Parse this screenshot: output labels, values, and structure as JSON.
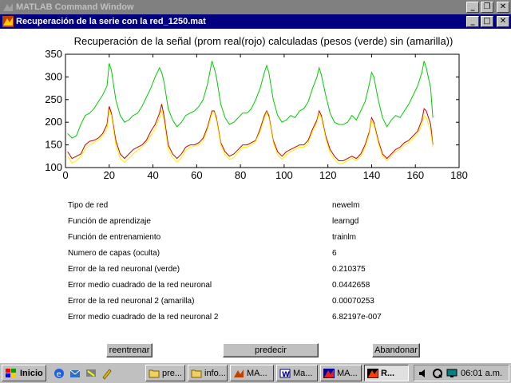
{
  "bg_window": {
    "title": "MATLAB Command Window"
  },
  "figure_window": {
    "title": "Recuperación de la serie con la red_1250.mat"
  },
  "chart_data": {
    "type": "line",
    "title": "Recuperación de la señal (prom real(rojo) calculadas (pesos (verde) sin (amarilla))",
    "xlim": [
      0,
      180
    ],
    "ylim": [
      100,
      350
    ],
    "xticks": [
      0,
      20,
      40,
      60,
      80,
      100,
      120,
      140,
      160,
      180
    ],
    "yticks": [
      100,
      150,
      200,
      250,
      300,
      350
    ],
    "grid": false,
    "series": [
      {
        "color": "#00cc00",
        "x": [
          1,
          3,
          5,
          7,
          9,
          11,
          13,
          15,
          17,
          19,
          20,
          21,
          23,
          25,
          27,
          29,
          31,
          33,
          35,
          37,
          39,
          41,
          43,
          44,
          45,
          47,
          49,
          51,
          53,
          55,
          57,
          59,
          61,
          63,
          65,
          67,
          68,
          69,
          71,
          73,
          75,
          77,
          79,
          81,
          83,
          85,
          87,
          89,
          91,
          92,
          93,
          95,
          97,
          99,
          101,
          103,
          105,
          107,
          109,
          111,
          113,
          115,
          116,
          117,
          119,
          121,
          123,
          125,
          127,
          129,
          131,
          133,
          135,
          137,
          139,
          140,
          141,
          143,
          145,
          147,
          149,
          151,
          153,
          155,
          157,
          159,
          161,
          163,
          164,
          165,
          167,
          168
        ],
        "y": [
          175,
          165,
          170,
          195,
          215,
          220,
          230,
          245,
          260,
          280,
          330,
          315,
          250,
          215,
          200,
          205,
          215,
          220,
          235,
          255,
          275,
          300,
          320,
          310,
          290,
          230,
          205,
          190,
          200,
          215,
          220,
          225,
          235,
          250,
          285,
          335,
          320,
          300,
          240,
          210,
          195,
          200,
          210,
          220,
          220,
          230,
          250,
          275,
          310,
          325,
          310,
          250,
          215,
          200,
          205,
          215,
          210,
          225,
          230,
          245,
          275,
          300,
          320,
          305,
          260,
          220,
          200,
          195,
          195,
          200,
          215,
          205,
          225,
          245,
          285,
          310,
          300,
          250,
          210,
          190,
          205,
          215,
          210,
          225,
          240,
          260,
          280,
          310,
          335,
          320,
          275,
          210
        ]
      },
      {
        "color": "#cc0000",
        "x": [
          1,
          3,
          5,
          7,
          9,
          11,
          13,
          15,
          17,
          19,
          20,
          21,
          23,
          25,
          27,
          29,
          31,
          33,
          35,
          37,
          39,
          41,
          43,
          44,
          45,
          47,
          49,
          51,
          53,
          55,
          57,
          59,
          61,
          63,
          65,
          67,
          68,
          69,
          71,
          73,
          75,
          77,
          79,
          81,
          83,
          85,
          87,
          89,
          91,
          92,
          93,
          95,
          97,
          99,
          101,
          103,
          105,
          107,
          109,
          111,
          113,
          115,
          116,
          117,
          119,
          121,
          123,
          125,
          127,
          129,
          131,
          133,
          135,
          137,
          139,
          140,
          141,
          143,
          145,
          147,
          149,
          151,
          153,
          155,
          157,
          159,
          161,
          163,
          164,
          165,
          167,
          168
        ],
        "y": [
          135,
          120,
          125,
          130,
          150,
          158,
          160,
          165,
          175,
          195,
          235,
          220,
          160,
          130,
          120,
          130,
          140,
          145,
          150,
          160,
          180,
          195,
          220,
          240,
          215,
          150,
          130,
          120,
          130,
          145,
          150,
          150,
          155,
          165,
          190,
          225,
          225,
          210,
          155,
          135,
          125,
          130,
          140,
          150,
          150,
          155,
          160,
          185,
          215,
          225,
          215,
          160,
          135,
          125,
          135,
          140,
          145,
          150,
          150,
          160,
          185,
          205,
          225,
          215,
          170,
          140,
          125,
          115,
          115,
          120,
          125,
          120,
          130,
          150,
          180,
          210,
          200,
          160,
          130,
          120,
          130,
          140,
          145,
          155,
          160,
          170,
          180,
          205,
          230,
          225,
          195,
          150
        ]
      },
      {
        "color": "#ffee00",
        "x": [
          1,
          3,
          5,
          7,
          9,
          11,
          13,
          15,
          17,
          19,
          20,
          21,
          23,
          25,
          27,
          29,
          31,
          33,
          35,
          37,
          39,
          41,
          43,
          44,
          45,
          47,
          49,
          51,
          53,
          55,
          57,
          59,
          61,
          63,
          65,
          67,
          68,
          69,
          71,
          73,
          75,
          77,
          79,
          81,
          83,
          85,
          87,
          89,
          91,
          92,
          93,
          95,
          97,
          99,
          101,
          103,
          105,
          107,
          109,
          111,
          113,
          115,
          116,
          117,
          119,
          121,
          123,
          125,
          127,
          129,
          131,
          133,
          135,
          137,
          139,
          140,
          141,
          143,
          145,
          147,
          149,
          151,
          153,
          155,
          157,
          159,
          161,
          163,
          164,
          165,
          167,
          168
        ],
        "y": [
          125,
          110,
          115,
          125,
          140,
          150,
          155,
          160,
          170,
          185,
          225,
          215,
          150,
          120,
          112,
          120,
          130,
          138,
          145,
          155,
          170,
          185,
          210,
          225,
          205,
          140,
          122,
          112,
          122,
          138,
          145,
          147,
          150,
          160,
          185,
          220,
          222,
          205,
          150,
          128,
          118,
          122,
          135,
          145,
          145,
          150,
          158,
          180,
          210,
          222,
          210,
          155,
          128,
          118,
          128,
          135,
          140,
          145,
          145,
          155,
          180,
          200,
          220,
          210,
          165,
          132,
          118,
          108,
          110,
          115,
          120,
          115,
          125,
          145,
          175,
          205,
          195,
          155,
          125,
          115,
          125,
          135,
          140,
          150,
          155,
          165,
          175,
          195,
          215,
          210,
          180,
          145
        ]
      }
    ]
  },
  "info": [
    {
      "label": "Tipo de red",
      "value": "newelm"
    },
    {
      "label": "Función de aprendizaje",
      "value": "learngd"
    },
    {
      "label": "Función de entrenamiento",
      "value": "trainlm"
    },
    {
      "label": "Numero de capas (oculta)",
      "value": "6"
    },
    {
      "label": "Error de la red neuronal (verde)",
      "value": "0.210375"
    },
    {
      "label": "Error medio cuadrado de la red neuronal",
      "value": "0.0442658"
    },
    {
      "label": "Error de la red neuronal 2 (amarilla)",
      "value": "0.00070253"
    },
    {
      "label": "Error medio cuadrado de la red neuronal 2",
      "value": "6.82197e-007"
    }
  ],
  "buttons": {
    "retrain": "reentrenar",
    "predict": "predecir",
    "abort": "Abandonar"
  },
  "taskbar": {
    "start": "Inicio",
    "tasks": [
      "pre...",
      "info...",
      "MA...",
      "Ma...",
      "MA...",
      "R..."
    ],
    "clock": "06:01 a.m."
  }
}
